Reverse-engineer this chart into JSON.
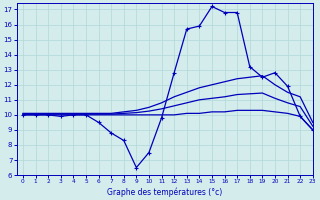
{
  "xlabel": "Graphe des températures (°c)",
  "background_color": "#d4edec",
  "line_color": "#0000bb",
  "grid_color": "#b0d8d8",
  "xlim": [
    -0.5,
    23
  ],
  "ylim": [
    6,
    17.4
  ],
  "yticks": [
    6,
    7,
    8,
    9,
    10,
    11,
    12,
    13,
    14,
    15,
    16,
    17
  ],
  "xticks": [
    0,
    1,
    2,
    3,
    4,
    5,
    6,
    7,
    8,
    9,
    10,
    11,
    12,
    13,
    14,
    15,
    16,
    17,
    18,
    19,
    20,
    21,
    22,
    23
  ],
  "hours": [
    0,
    1,
    2,
    3,
    4,
    5,
    6,
    7,
    8,
    9,
    10,
    11,
    12,
    13,
    14,
    15,
    16,
    17,
    18,
    19,
    20,
    21,
    22,
    23
  ],
  "temp_current": [
    10.0,
    10.0,
    10.0,
    9.9,
    10.0,
    10.0,
    9.5,
    8.8,
    8.3,
    6.5,
    7.5,
    9.8,
    12.8,
    15.7,
    15.9,
    17.2,
    16.8,
    16.8,
    13.2,
    12.5,
    12.8,
    11.9,
    9.9,
    9.0
  ],
  "temp_max": [
    10.1,
    10.1,
    10.1,
    10.1,
    10.1,
    10.1,
    10.1,
    10.1,
    10.2,
    10.3,
    10.5,
    10.8,
    11.2,
    11.5,
    11.8,
    12.0,
    12.2,
    12.4,
    12.5,
    12.6,
    12.0,
    11.5,
    11.2,
    9.5
  ],
  "temp_min": [
    10.0,
    10.0,
    10.0,
    10.0,
    10.0,
    10.0,
    10.0,
    10.0,
    10.0,
    10.0,
    10.0,
    10.0,
    10.0,
    10.1,
    10.1,
    10.2,
    10.2,
    10.3,
    10.3,
    10.3,
    10.2,
    10.1,
    9.9,
    9.0
  ],
  "temp_avg": [
    10.05,
    10.05,
    10.05,
    10.05,
    10.05,
    10.05,
    10.05,
    10.05,
    10.1,
    10.15,
    10.25,
    10.4,
    10.6,
    10.8,
    11.0,
    11.1,
    11.2,
    11.35,
    11.4,
    11.45,
    11.1,
    10.8,
    10.55,
    9.25
  ]
}
